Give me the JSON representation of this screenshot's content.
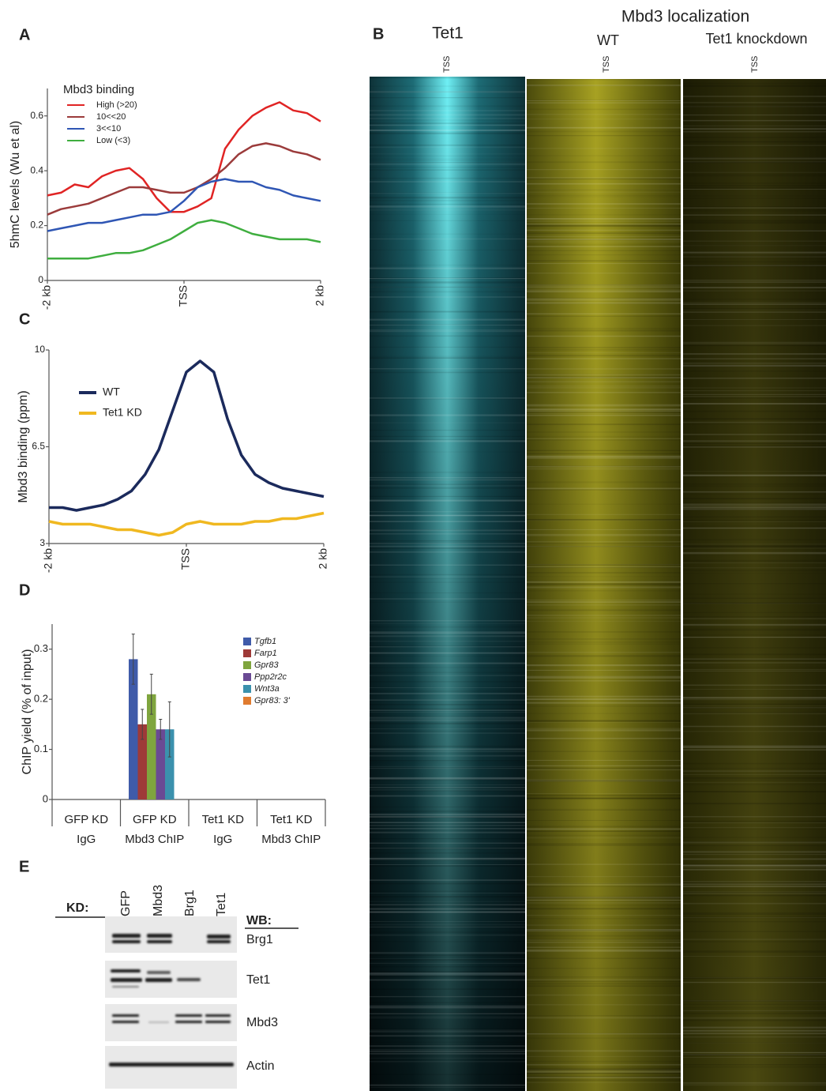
{
  "chart_data": [
    {
      "type": "line",
      "panel": "A",
      "ylabel": "5hmC levels (Wu et al)",
      "legend_title": "Mbd3 binding",
      "x": [
        -2,
        -1.8,
        -1.6,
        -1.4,
        -1.2,
        -1,
        -0.8,
        -0.6,
        -0.4,
        -0.2,
        0,
        0.2,
        0.4,
        0.6,
        0.8,
        1,
        1.2,
        1.4,
        1.6,
        1.8,
        2
      ],
      "xlim": [
        -2,
        2
      ],
      "xticks": [
        {
          "value": -2,
          "label": "-2 kb"
        },
        {
          "value": 0,
          "label": "TSS"
        },
        {
          "value": 2,
          "label": "2 kb"
        }
      ],
      "ylim": [
        0,
        0.7
      ],
      "yticks": [
        0,
        0.2,
        0.4,
        0.6
      ],
      "series": [
        {
          "name": "High (>20)",
          "color": "#e02424",
          "values": [
            0.31,
            0.32,
            0.35,
            0.34,
            0.38,
            0.4,
            0.41,
            0.37,
            0.3,
            0.25,
            0.25,
            0.27,
            0.3,
            0.48,
            0.55,
            0.6,
            0.63,
            0.65,
            0.62,
            0.61,
            0.58
          ]
        },
        {
          "name": "10<<20",
          "color": "#9b3b3b",
          "values": [
            0.24,
            0.26,
            0.27,
            0.28,
            0.3,
            0.32,
            0.34,
            0.34,
            0.33,
            0.32,
            0.32,
            0.34,
            0.37,
            0.41,
            0.46,
            0.49,
            0.5,
            0.49,
            0.47,
            0.46,
            0.44
          ]
        },
        {
          "name": "3<<10",
          "color": "#2f56b4",
          "values": [
            0.18,
            0.19,
            0.2,
            0.21,
            0.21,
            0.22,
            0.23,
            0.24,
            0.24,
            0.25,
            0.29,
            0.34,
            0.36,
            0.37,
            0.36,
            0.36,
            0.34,
            0.33,
            0.31,
            0.3,
            0.29
          ]
        },
        {
          "name": "Low (<3)",
          "color": "#3fae3f",
          "values": [
            0.08,
            0.08,
            0.08,
            0.08,
            0.09,
            0.1,
            0.1,
            0.11,
            0.13,
            0.15,
            0.18,
            0.21,
            0.22,
            0.21,
            0.19,
            0.17,
            0.16,
            0.15,
            0.15,
            0.15,
            0.14
          ]
        }
      ]
    },
    {
      "type": "line",
      "panel": "C",
      "ylabel": "Mbd3 binding (ppm)",
      "x": [
        -2,
        -1.8,
        -1.6,
        -1.4,
        -1.2,
        -1,
        -0.8,
        -0.6,
        -0.4,
        -0.2,
        0,
        0.2,
        0.4,
        0.6,
        0.8,
        1,
        1.2,
        1.4,
        1.6,
        1.8,
        2
      ],
      "xlim": [
        -2,
        2
      ],
      "xticks": [
        {
          "value": -2,
          "label": "-2 kb"
        },
        {
          "value": 0,
          "label": "TSS"
        },
        {
          "value": 2,
          "label": "2 kb"
        }
      ],
      "ylim": [
        3,
        10
      ],
      "yticks": [
        3,
        6.5,
        10
      ],
      "series": [
        {
          "name": "WT",
          "color": "#1b2a5c",
          "values": [
            4.3,
            4.3,
            4.2,
            4.3,
            4.4,
            4.6,
            4.9,
            5.5,
            6.4,
            7.8,
            9.2,
            9.6,
            9.2,
            7.5,
            6.2,
            5.5,
            5.2,
            5.0,
            4.9,
            4.8,
            4.7
          ]
        },
        {
          "name": "Tet1 KD",
          "color": "#f0b820",
          "values": [
            3.8,
            3.7,
            3.7,
            3.7,
            3.6,
            3.5,
            3.5,
            3.4,
            3.3,
            3.4,
            3.7,
            3.8,
            3.7,
            3.7,
            3.7,
            3.8,
            3.8,
            3.9,
            3.9,
            4.0,
            4.1
          ]
        }
      ]
    },
    {
      "type": "bar",
      "panel": "D",
      "ylabel": "ChIP yield (% of input)",
      "categories": [
        [
          "GFP KD",
          "IgG"
        ],
        [
          "GFP KD",
          "Mbd3 ChIP"
        ],
        [
          "Tet1 KD",
          "IgG"
        ],
        [
          "Tet1 KD",
          "Mbd3 ChIP"
        ]
      ],
      "ylim": [
        0,
        0.35
      ],
      "yticks": [
        0,
        0.1,
        0.2,
        0.3
      ],
      "series": [
        {
          "name": "Tgfb1",
          "color": "#3f5ba9",
          "values": [
            0,
            0.28,
            0,
            0
          ],
          "errors": [
            0,
            0.05,
            0,
            0
          ]
        },
        {
          "name": "Farp1",
          "color": "#9e3a38",
          "values": [
            0,
            0.15,
            0,
            0
          ],
          "errors": [
            0,
            0.03,
            0,
            0
          ]
        },
        {
          "name": "Gpr83",
          "color": "#7fa53e",
          "values": [
            0,
            0.21,
            0,
            0
          ],
          "errors": [
            0,
            0.04,
            0,
            0
          ]
        },
        {
          "name": "Ppp2r2c",
          "color": "#6a4a94",
          "values": [
            0,
            0.14,
            0,
            0
          ],
          "errors": [
            0,
            0.02,
            0,
            0
          ]
        },
        {
          "name": "Wnt3a",
          "color": "#3b91ad",
          "values": [
            0,
            0.14,
            0,
            0
          ],
          "errors": [
            0,
            0.055,
            0,
            0
          ]
        },
        {
          "name": "Gpr83: 3'",
          "color": "#e07b2f",
          "values": [
            0,
            0,
            0,
            0
          ],
          "errors": [
            0,
            0,
            0,
            0
          ]
        }
      ]
    }
  ],
  "heatmaps": {
    "panel": "B",
    "title": "Mbd3 localization",
    "columns": [
      {
        "title": "Tet1",
        "tss": "TSS"
      },
      {
        "title": "WT",
        "tss": "TSS"
      },
      {
        "title": "Tet1 knockdown",
        "tss": "TSS"
      }
    ]
  },
  "western_blot": {
    "panel": "E",
    "kd": "KD:",
    "lanes": [
      "GFP",
      "Mbd3",
      "Brg1",
      "Tet1"
    ],
    "wb": "WB:",
    "blots": [
      "Brg1",
      "Tet1",
      "Mbd3",
      "Actin"
    ]
  }
}
